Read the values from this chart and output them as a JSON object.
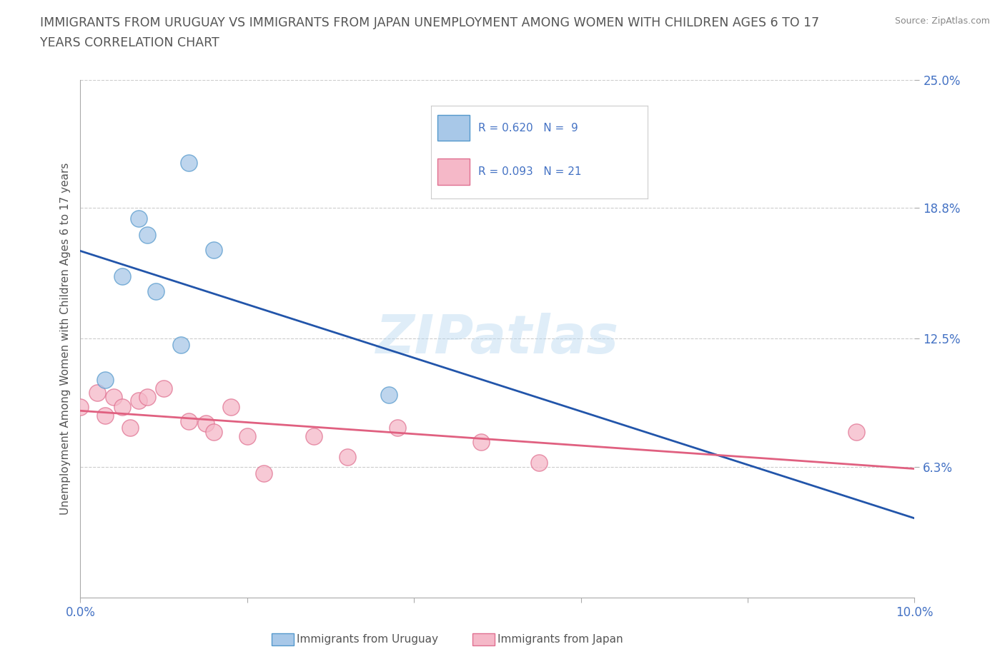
{
  "title_line1": "IMMIGRANTS FROM URUGUAY VS IMMIGRANTS FROM JAPAN UNEMPLOYMENT AMONG WOMEN WITH CHILDREN AGES 6 TO 17",
  "title_line2": "YEARS CORRELATION CHART",
  "source": "Source: ZipAtlas.com",
  "ylabel_text": "Unemployment Among Women with Children Ages 6 to 17 years",
  "xlim": [
    0.0,
    0.1
  ],
  "ylim": [
    0.0,
    0.25
  ],
  "xtick_positions": [
    0.0,
    0.02,
    0.04,
    0.06,
    0.08,
    0.1
  ],
  "xticklabels": [
    "0.0%",
    "",
    "",
    "",
    "",
    "10.0%"
  ],
  "ytick_positions": [
    0.063,
    0.125,
    0.188,
    0.25
  ],
  "ytick_labels": [
    "6.3%",
    "12.5%",
    "18.8%",
    "25.0%"
  ],
  "watermark": "ZIPatlas",
  "uruguay_fill": "#a8c8e8",
  "uruguay_edge": "#5599cc",
  "japan_fill": "#f5b8c8",
  "japan_edge": "#e07090",
  "trend_uruguay_color": "#2255aa",
  "trend_japan_color": "#e06080",
  "legend_color": "#4472c4",
  "grid_color": "#cccccc",
  "background_color": "#ffffff",
  "uruguay_points_x": [
    0.003,
    0.005,
    0.007,
    0.008,
    0.009,
    0.012,
    0.013,
    0.016,
    0.037
  ],
  "uruguay_points_y": [
    0.105,
    0.155,
    0.183,
    0.175,
    0.148,
    0.122,
    0.21,
    0.168,
    0.098
  ],
  "japan_points_x": [
    0.0,
    0.002,
    0.003,
    0.004,
    0.005,
    0.006,
    0.007,
    0.008,
    0.01,
    0.013,
    0.015,
    0.016,
    0.018,
    0.02,
    0.022,
    0.028,
    0.032,
    0.038,
    0.048,
    0.055,
    0.093
  ],
  "japan_points_y": [
    0.092,
    0.099,
    0.088,
    0.097,
    0.092,
    0.082,
    0.095,
    0.097,
    0.101,
    0.085,
    0.084,
    0.08,
    0.092,
    0.078,
    0.06,
    0.078,
    0.068,
    0.082,
    0.075,
    0.065,
    0.08
  ],
  "scatter_size": 280,
  "scatter_alpha": 0.75,
  "legend_R_uruguay": "R = 0.620",
  "legend_N_uruguay": "N =  9",
  "legend_R_japan": "R = 0.093",
  "legend_N_japan": "N = 21"
}
